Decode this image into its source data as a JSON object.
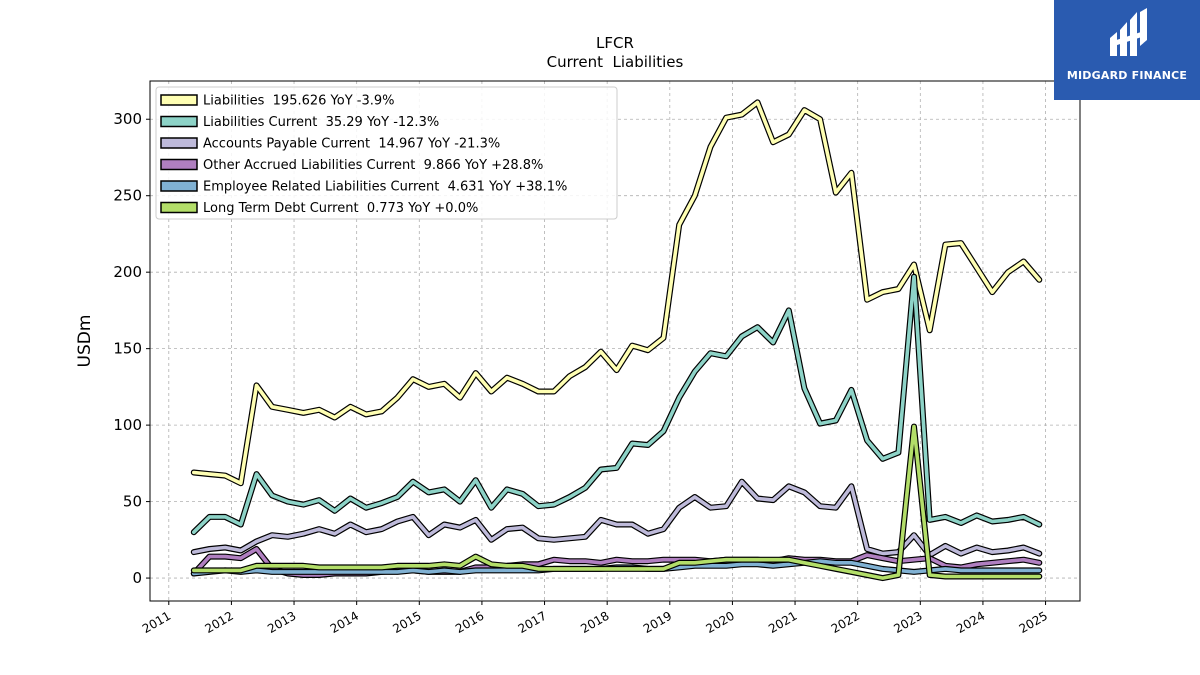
{
  "brand": {
    "name": "MIDGARD FINANCE",
    "logo_color": "#2a5bb0"
  },
  "chart_data": {
    "type": "line",
    "title": "LFCR",
    "subtitle": "Current  Liabilities",
    "xlabel": "",
    "ylabel": "USDm",
    "xlim": [
      2010.7,
      2025.55
    ],
    "ylim": [
      -15,
      325
    ],
    "x_ticks": [
      "2011",
      "2012",
      "2013",
      "2014",
      "2015",
      "2016",
      "2017",
      "2018",
      "2019",
      "2020",
      "2021",
      "2022",
      "2023",
      "2024",
      "2025"
    ],
    "y_ticks": [
      "0",
      "50",
      "100",
      "150",
      "200",
      "250",
      "300"
    ],
    "grid": true,
    "legend_position": "top-left",
    "x": [
      2011.4,
      2011.65,
      2011.9,
      2012.15,
      2012.4,
      2012.65,
      2012.9,
      2013.15,
      2013.4,
      2013.65,
      2013.9,
      2014.15,
      2014.4,
      2014.65,
      2014.9,
      2015.15,
      2015.4,
      2015.65,
      2015.9,
      2016.15,
      2016.4,
      2016.65,
      2016.9,
      2017.15,
      2017.4,
      2017.65,
      2017.9,
      2018.15,
      2018.4,
      2018.65,
      2018.9,
      2019.15,
      2019.4,
      2019.65,
      2019.9,
      2020.15,
      2020.4,
      2020.65,
      2020.9,
      2021.15,
      2021.4,
      2021.65,
      2021.9,
      2022.15,
      2022.4,
      2022.65,
      2022.9,
      2023.15,
      2023.4,
      2023.65,
      2023.9,
      2024.15,
      2024.4,
      2024.65,
      2024.9
    ],
    "series": [
      {
        "name": "Liabilities  195.626 YoY -3.9%",
        "color": "#ffffb3",
        "values": [
          69,
          68,
          67,
          62,
          126,
          112,
          110,
          108,
          110,
          105,
          112,
          107,
          109,
          118,
          130,
          125,
          127,
          118,
          134,
          122,
          131,
          127,
          122,
          122,
          132,
          138,
          148,
          136,
          152,
          149,
          157,
          231,
          250,
          282,
          301,
          303,
          311,
          285,
          290,
          306,
          300,
          252,
          265,
          182,
          187,
          189,
          205,
          162,
          218,
          219,
          203,
          187,
          200,
          207,
          195
        ]
      },
      {
        "name": "Liabilities Current  35.29 YoY -12.3%",
        "color": "#8dd3c7",
        "values": [
          30,
          40,
          40,
          35,
          68,
          54,
          50,
          48,
          51,
          44,
          52,
          46,
          49,
          53,
          63,
          56,
          58,
          50,
          64,
          46,
          58,
          55,
          47,
          48,
          53,
          59,
          71,
          72,
          88,
          87,
          96,
          118,
          135,
          147,
          145,
          158,
          164,
          154,
          175,
          124,
          101,
          103,
          123,
          90,
          78,
          82,
          197,
          38,
          40,
          36,
          41,
          37,
          38,
          40,
          35
        ]
      },
      {
        "name": "Accounts Payable Current  14.967 YoY -21.3%",
        "color": "#bebada",
        "values": [
          17,
          19,
          20,
          18,
          24,
          28,
          27,
          29,
          32,
          29,
          35,
          30,
          32,
          37,
          40,
          28,
          35,
          33,
          38,
          25,
          32,
          33,
          26,
          25,
          26,
          27,
          38,
          35,
          35,
          29,
          32,
          46,
          53,
          46,
          47,
          63,
          52,
          51,
          60,
          56,
          47,
          46,
          60,
          19,
          16,
          17,
          28,
          15,
          21,
          16,
          20,
          17,
          18,
          20,
          16
        ]
      },
      {
        "name": "Other Accrued Liabilities Current  9.866 YoY +28.8%",
        "color": "#b07fc0",
        "values": [
          3,
          14,
          14,
          13,
          19,
          6,
          3,
          2,
          2,
          3,
          3,
          3,
          4,
          5,
          5,
          4,
          4,
          4,
          7,
          7,
          8,
          9,
          9,
          12,
          11,
          11,
          10,
          12,
          11,
          11,
          12,
          12,
          12,
          11,
          12,
          12,
          12,
          11,
          13,
          12,
          12,
          11,
          11,
          15,
          13,
          11,
          12,
          13,
          8,
          7,
          9,
          10,
          11,
          12,
          10
        ]
      },
      {
        "name": "Employee Related Liabilities Current  4.631 YoY +38.1%",
        "color": "#80b1d3",
        "values": [
          3,
          4,
          5,
          4,
          5,
          4,
          4,
          4,
          4,
          4,
          4,
          4,
          4,
          4,
          5,
          4,
          5,
          4,
          5,
          5,
          5,
          5,
          5,
          6,
          6,
          6,
          6,
          7,
          7,
          6,
          6,
          7,
          8,
          8,
          8,
          9,
          9,
          8,
          9,
          10,
          11,
          10,
          10,
          8,
          6,
          5,
          4,
          5,
          6,
          5,
          5,
          5,
          5,
          5,
          5
        ]
      },
      {
        "name": "Long Term Debt Current  0.773 YoY +0.0%",
        "color": "#b3de69",
        "values": [
          5,
          5,
          5,
          5,
          8,
          8,
          8,
          8,
          7,
          7,
          7,
          7,
          7,
          8,
          8,
          8,
          9,
          8,
          14,
          9,
          8,
          8,
          6,
          6,
          6,
          6,
          6,
          6,
          6,
          6,
          6,
          10,
          10,
          11,
          12,
          12,
          12,
          12,
          12,
          10,
          8,
          6,
          4,
          2,
          0,
          2,
          99,
          2,
          1,
          1,
          1,
          1,
          1,
          1,
          1
        ]
      }
    ]
  }
}
